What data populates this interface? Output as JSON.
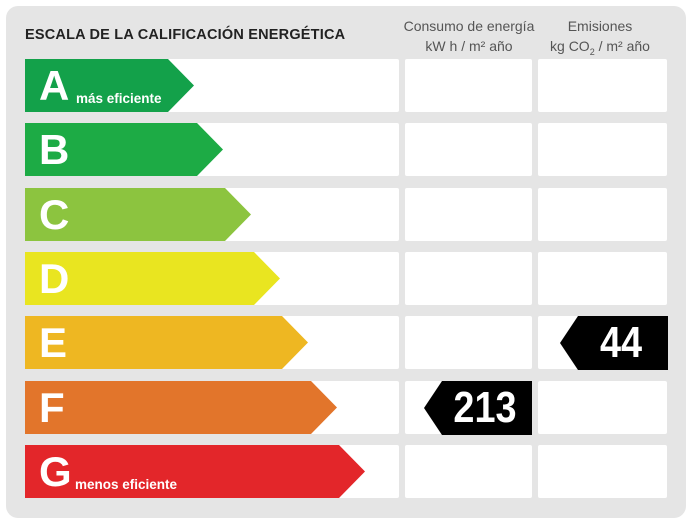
{
  "title": "ESCALA DE LA CALIFICACIÓN ENERGÉTICA",
  "columns": {
    "consumo": {
      "line1": "Consumo de energía",
      "line2": "kW h  / m² año"
    },
    "emisiones": {
      "line1": "Emisiones",
      "line2_pre": "kg CO",
      "line2_sub": "2",
      "line2_post": "  / m² año"
    }
  },
  "ratings": [
    {
      "letter": "A",
      "label": "más eficiente",
      "color": "#13a14a"
    },
    {
      "letter": "B",
      "label": "",
      "color": "#1dab45"
    },
    {
      "letter": "C",
      "label": "",
      "color": "#8cc43f"
    },
    {
      "letter": "D",
      "label": "",
      "color": "#e9e520"
    },
    {
      "letter": "E",
      "label": "",
      "color": "#eeb722"
    },
    {
      "letter": "F",
      "label": "",
      "color": "#e2752b"
    },
    {
      "letter": "G",
      "label": "menos eficiente",
      "color": "#e3262a"
    }
  ],
  "results": {
    "consumo": {
      "value": "213",
      "rating": "F"
    },
    "emisiones": {
      "value": "44",
      "rating": "E"
    }
  }
}
